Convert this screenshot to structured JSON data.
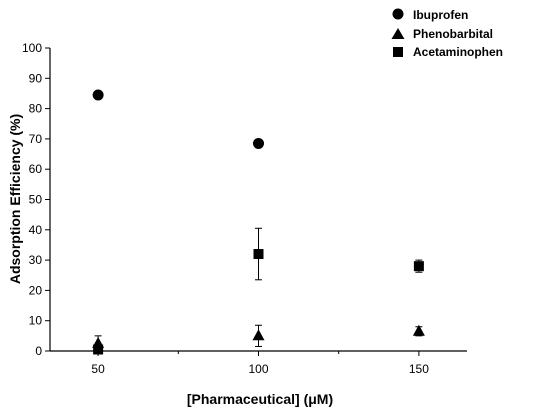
{
  "chart_data": {
    "type": "scatter",
    "xlabel": "[Pharmaceutical] (μM)",
    "ylabel": "Adsorption Efficiency (%)",
    "xlim": [
      35,
      165
    ],
    "ylim": [
      0,
      100
    ],
    "x_ticks": [
      50,
      100,
      150
    ],
    "x_tick_labels": [
      "50",
      "100",
      "150"
    ],
    "y_ticks": [
      0,
      10,
      20,
      30,
      40,
      50,
      60,
      70,
      80,
      90,
      100
    ],
    "y_tick_labels": [
      "0",
      "10",
      "20",
      "30",
      "40",
      "50",
      "60",
      "70",
      "80",
      "90",
      "100"
    ],
    "grid": false,
    "legend_position": "top-right",
    "marker_color": "#000000",
    "series": [
      {
        "name": "Ibuprofen",
        "marker": "circle",
        "points": [
          {
            "x": 50,
            "y": 84.5,
            "err": 0
          },
          {
            "x": 100,
            "y": 68.5,
            "err": 0
          }
        ]
      },
      {
        "name": "Phenobarbital",
        "marker": "triangle",
        "points": [
          {
            "x": 50,
            "y": 2.5,
            "err": 2.5
          },
          {
            "x": 100,
            "y": 5.0,
            "err": 3.5
          },
          {
            "x": 150,
            "y": 6.5,
            "err": 1.5
          }
        ]
      },
      {
        "name": "Acetaminophen",
        "marker": "square",
        "points": [
          {
            "x": 50,
            "y": 0.5,
            "err": 1.0
          },
          {
            "x": 100,
            "y": 32.0,
            "err": 8.5
          },
          {
            "x": 150,
            "y": 28.0,
            "err": 2.0
          }
        ]
      }
    ]
  }
}
